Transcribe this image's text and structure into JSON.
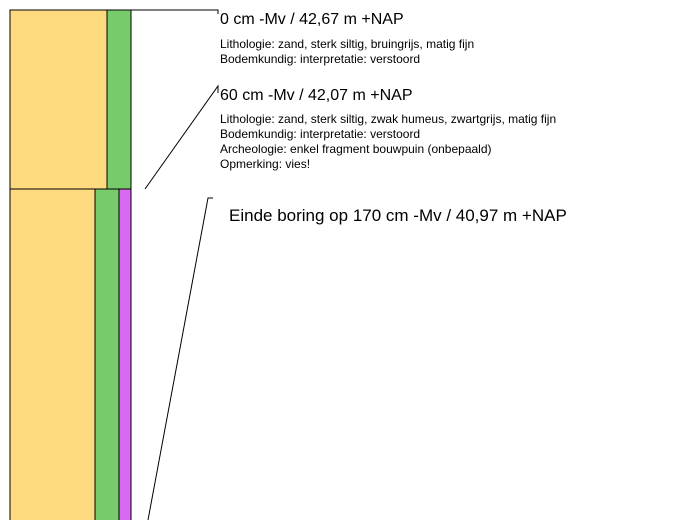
{
  "colors": {
    "sand": "#FFDB7F",
    "green": "#77CB6A",
    "magenta": "#D86AF2",
    "line": "#000000",
    "background": "#FFFFFF"
  },
  "layers": [
    {
      "depth_label": "0 cm -Mv / 42,67 m +NAP",
      "lines": [
        "Lithologie: zand, sterk siltig, bruingrijs, matig fijn",
        "Bodemkundig: interpretatie: verstoord"
      ]
    },
    {
      "depth_label": "60 cm -Mv / 42,07 m +NAP",
      "lines": [
        "Lithologie: zand, sterk siltig, zwak humeus, zwartgrijs, matig fijn",
        "Bodemkundig: interpretatie: verstoord",
        "Archeologie: enkel fragment bouwpuin (onbepaald)",
        "Opmerking: vies!"
      ]
    }
  ],
  "end_label": "Einde boring op 170 cm -Mv / 40,97 m +NAP"
}
